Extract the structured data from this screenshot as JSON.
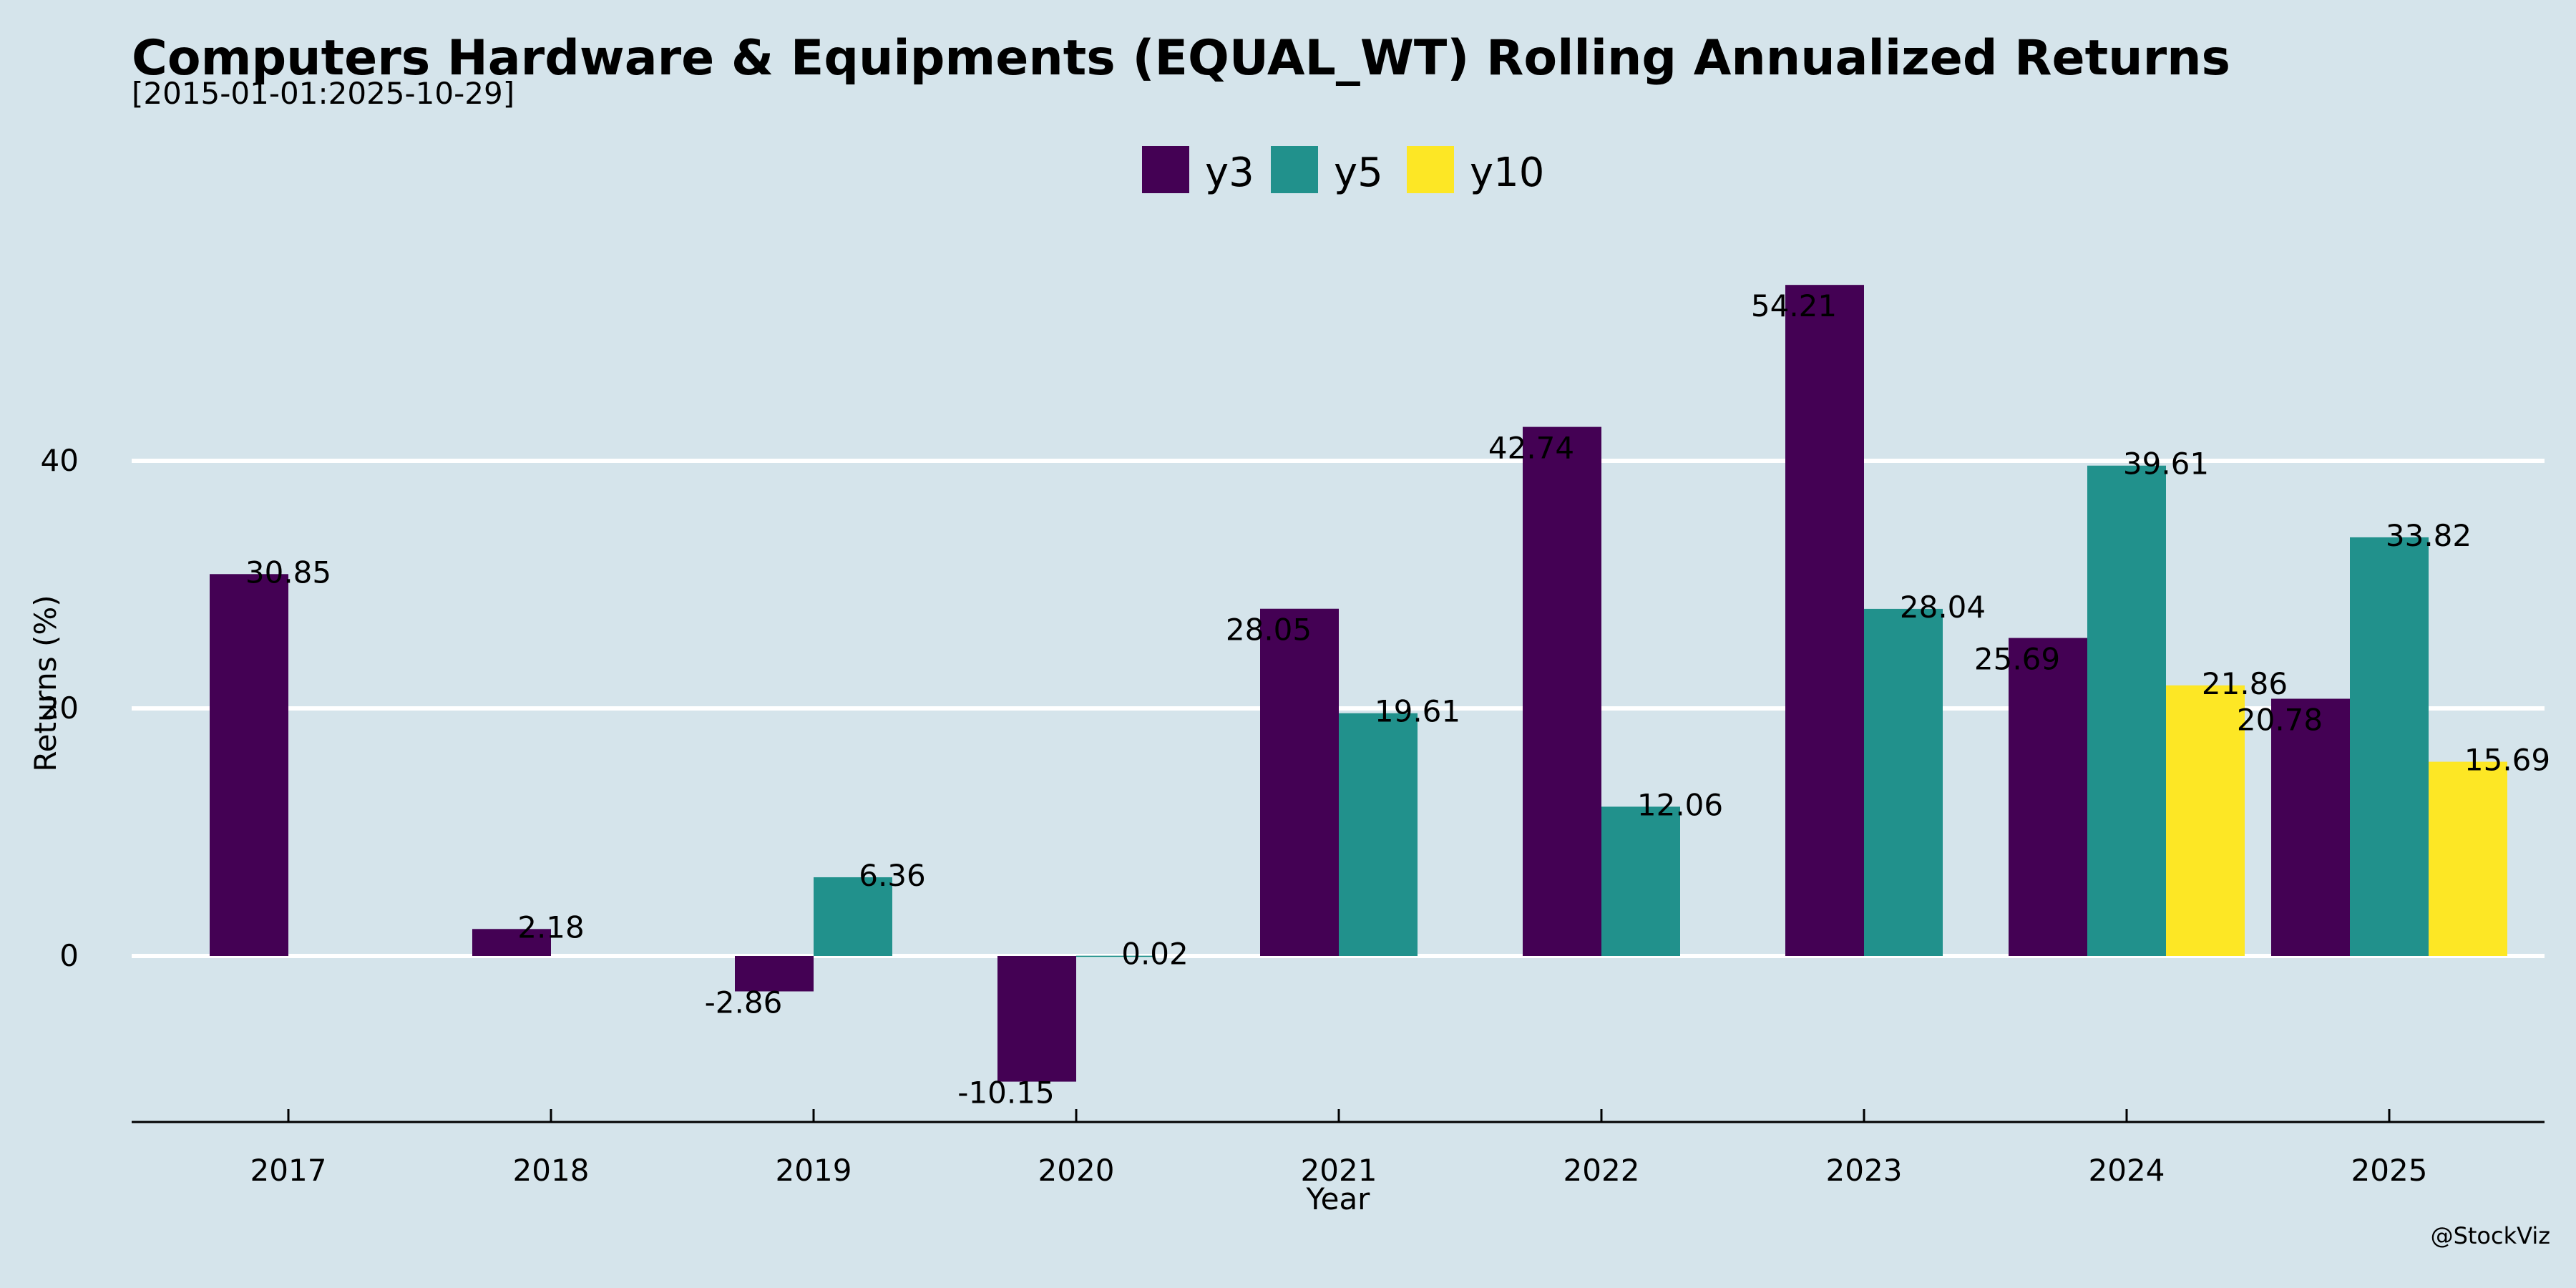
{
  "chart_data": {
    "type": "bar",
    "title": "Computers Hardware & Equipments (EQUAL_WT) Rolling Annualized Returns",
    "subtitle": "[2015-01-01:2025-10-29]",
    "xlabel": "Year",
    "ylabel": "Returns (%)",
    "categories": [
      "2017",
      "2018",
      "2019",
      "2020",
      "2021",
      "2022",
      "2023",
      "2024",
      "2025"
    ],
    "series": [
      {
        "name": "y3",
        "color": "#440154",
        "values": [
          30.85,
          2.18,
          -2.86,
          -10.15,
          28.05,
          42.74,
          54.21,
          25.69,
          20.78
        ]
      },
      {
        "name": "y5",
        "color": "#21918c",
        "values": [
          null,
          null,
          6.36,
          0.02,
          19.61,
          12.06,
          28.04,
          39.61,
          33.82
        ]
      },
      {
        "name": "y10",
        "color": "#fde725",
        "values": [
          null,
          null,
          null,
          null,
          null,
          null,
          null,
          21.86,
          15.69
        ]
      }
    ],
    "yticks": [
      0,
      20,
      40
    ],
    "ylim": [
      -13.4,
      60
    ],
    "grid": "horizontal",
    "legend": "top-center",
    "watermark": "@StockViz"
  }
}
